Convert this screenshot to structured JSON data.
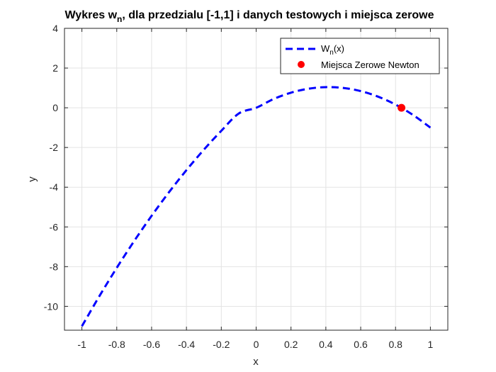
{
  "chart_data": {
    "type": "line",
    "title": {
      "prefix": "Wykres w",
      "sub": "n",
      "suffix": ", dla przedzialu [-1,1] i danych testowych i miejsca zerowe"
    },
    "xlabel": "x",
    "ylabel": "y",
    "xlim": [
      -1.1,
      1.1
    ],
    "ylim": [
      -11.2,
      4
    ],
    "xticks": [
      -1,
      -0.8,
      -0.6,
      -0.4,
      -0.2,
      0,
      0.2,
      0.4,
      0.6,
      0.8,
      1
    ],
    "xtick_labels": [
      "-1",
      "-0.8",
      "-0.6",
      "-0.4",
      "-0.2",
      "0",
      "0.2",
      "0.4",
      "0.6",
      "0.8",
      "1"
    ],
    "yticks": [
      -10,
      -8,
      -6,
      -4,
      -2,
      0,
      2,
      4
    ],
    "ytick_labels": [
      "-10",
      "-8",
      "-6",
      "-4",
      "-2",
      "0",
      "2",
      "4"
    ],
    "grid": true,
    "legend_placement": "top-right",
    "series": [
      {
        "name": {
          "prefix": "W",
          "sub": "n",
          "suffix": "(x)"
        },
        "kind": "line",
        "style": "dashed",
        "color": "#0000ff",
        "x": [
          -1,
          -0.9,
          -0.8,
          -0.7,
          -0.6,
          -0.5,
          -0.4,
          -0.3,
          -0.2,
          -0.1,
          0,
          0.1,
          0.2,
          0.3,
          0.4,
          0.5,
          0.6,
          0.7,
          0.8,
          0.9,
          1
        ],
        "y": [
          -11.0,
          -9.49,
          -8.06,
          -6.71,
          -5.44,
          -4.25,
          -3.14,
          -2.11,
          -1.16,
          -0.29,
          0.0,
          0.44,
          0.76,
          0.96,
          1.04,
          1.0,
          0.84,
          0.56,
          0.16,
          -0.36,
          -1.0
        ]
      },
      {
        "name": "Miejsca Zerowe Newton",
        "kind": "scatter",
        "color": "#ff0000",
        "x": [
          0.834
        ],
        "y": [
          0.0
        ]
      }
    ]
  }
}
